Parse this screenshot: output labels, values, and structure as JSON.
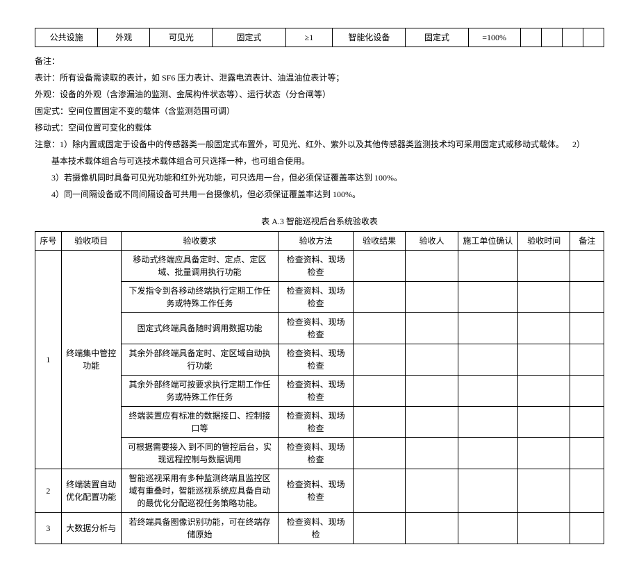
{
  "topRow": {
    "c1": "公共设施",
    "c2": "外观",
    "c3": "可见光",
    "c4": "固定式",
    "c5": "≥1",
    "c6": "智能化设备",
    "c7": "固定式",
    "c8": "=100%",
    "c9": "",
    "c10": "",
    "c11": "",
    "c12": ""
  },
  "notes": {
    "l1": "备注：",
    "l2": "表计：所有设备需读取的表计，如 SF6 压力表计、泄露电流表计、油温油位表计等；",
    "l3": "外观：设备的外观（含渗漏油的监测、金属构件状态等）、运行状态（分合闸等）",
    "l4": "固定式：空间位置固定不变的载体（含监测范围可调）",
    "l5": "移动式：空间位置可变化的载体",
    "l6a": "注意：1）除内置或固定于设备中的传感器类一般固定式布置外，可见光、红外、紫外以及其他传感器类监测技术均可采用固定式或移动式载体。",
    "l6b": "2）",
    "l7": "基本技术载体组合与可选技术载体组合可只选择一种，也可组合使用。",
    "l8": "3）若摄像机同时具备可见光功能和红外光功能，可只选用一台，但必须保证覆盖率达到 100%。",
    "l9": "4）同一间隔设备或不同间隔设备可共用一台摄像机，但必须保证覆盖率达到 100%。"
  },
  "caption": "表 A.3 智能巡视后台系统验收表",
  "headers": {
    "h1": "序号",
    "h2": "验收项目",
    "h3": "验收要求",
    "h4": "验收方法",
    "h5": "验收结果",
    "h6": "验收人",
    "h7": "施工单位确认",
    "h8": "验收时间",
    "h9": "备注"
  },
  "rows": [
    {
      "no": "1",
      "item": "终端集中管控功能",
      "reqs": [
        "移动式终端应具备定时、定点、定区域、批量调用执行功能",
        "下发指令到各移动终端执行定期工作任务或特殊工作任务",
        "固定式终端具备随时调用数据功能",
        "其余外部终端具备定时、定区域自动执行功能",
        "其余外部终端可按要求执行定期工作任务或特殊工作任务",
        "终端装置应有标准的数据接口、控制接口等",
        "可根据需要接入 到不同的管控后台，实现远程控制与数据调用"
      ],
      "methods": [
        "检查资料、现场检查",
        "检查资料、现场检查",
        "检查资料、现场检查",
        "检查资料、现场检查",
        "检查资料、现场检查",
        "检查资料、现场检查",
        "检查资料、现场检查"
      ]
    },
    {
      "no": "2",
      "item": "终端装置自动优化配置功能",
      "reqs": [
        "智能巡视采用有多种监测终端且监控区域有重叠时，智能巡视系统应具备自动的最优化分配巡视任务策略功能。"
      ],
      "methods": [
        "检查资料、现场检查"
      ]
    },
    {
      "no": "3",
      "item": "大数据分析与",
      "reqs": [
        "若终端具备图像识别功能，可在终端存储原始"
      ],
      "methods": [
        "检查资料、现场检"
      ]
    }
  ]
}
